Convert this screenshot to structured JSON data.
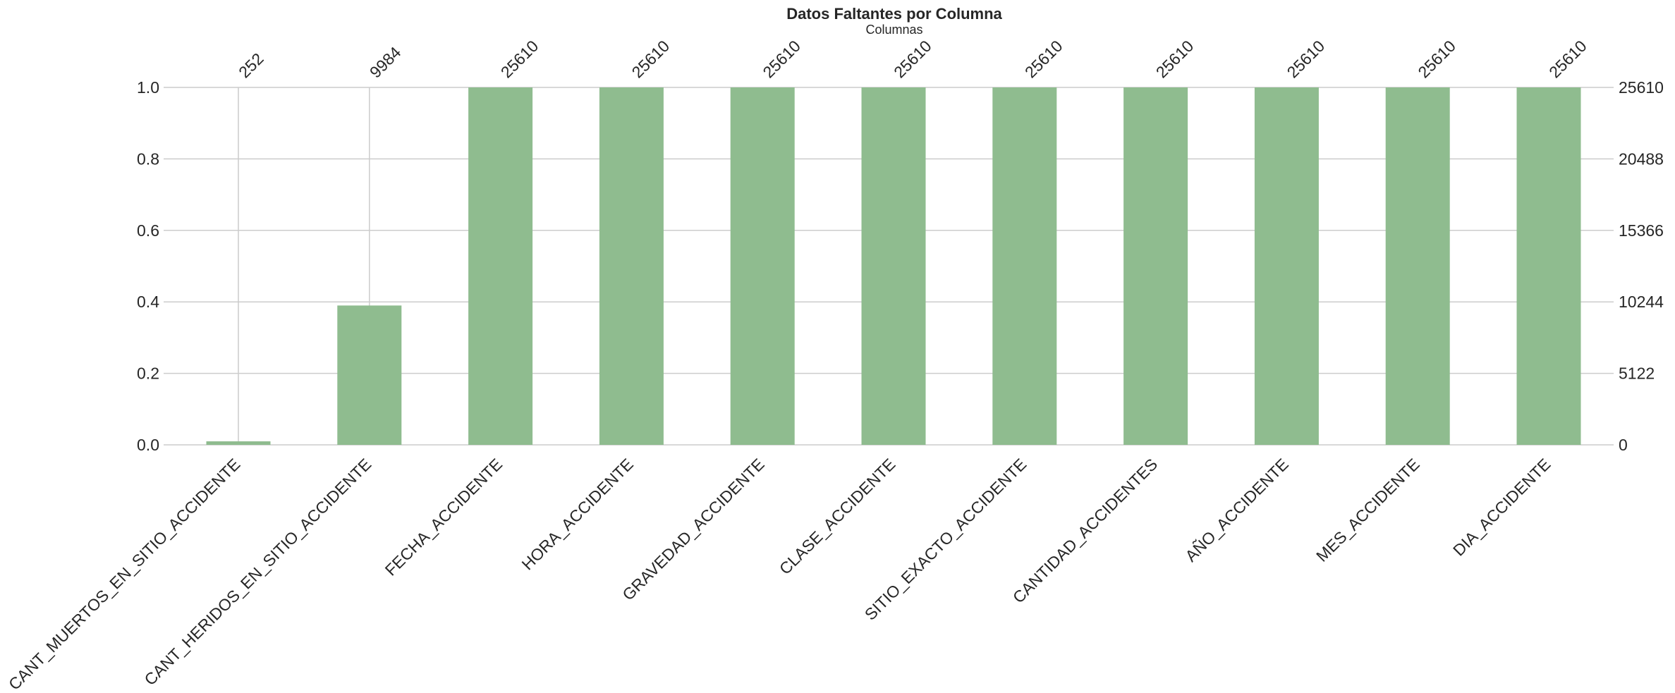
{
  "chart_data": {
    "type": "bar",
    "title": "Datos Faltantes por Columna",
    "subtitle": "Columnas",
    "total_rows": 25610,
    "categories": [
      "CANT_MUERTOS_EN_SITIO_ACCIDENTE",
      "CANT_HERIDOS_EN_SITIO_ACCIDENTE",
      "FECHA_ACCIDENTE",
      "HORA_ACCIDENTE",
      "GRAVEDAD_ACCIDENTE",
      "CLASE_ACCIDENTE",
      "SITIO_EXACTO_ACCIDENTE",
      "CANTIDAD_ACCIDENTES",
      "AÑO_ACCIDENTE",
      "MES_ACCIDENTE",
      "DIA_ACCIDENTE"
    ],
    "counts": [
      252,
      9984,
      25610,
      25610,
      25610,
      25610,
      25610,
      25610,
      25610,
      25610,
      25610
    ],
    "ylim": [
      0,
      1
    ],
    "left_ticks": [
      "0.0",
      "0.2",
      "0.4",
      "0.6",
      "0.8",
      "1.0"
    ],
    "right_ticks": [
      "0",
      "5122",
      "10244",
      "15366",
      "20488",
      "25610"
    ],
    "grid": true,
    "bar_color": "#8fbc8f"
  }
}
